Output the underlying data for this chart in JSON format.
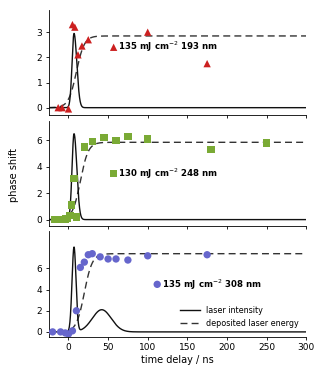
{
  "panel1": {
    "label": "135 mJ cm$^{-2}$ 193 nm",
    "scatter_color": "#cc2020",
    "marker": "^",
    "scatter_x": [
      -13,
      -8,
      0,
      5,
      8,
      12,
      17,
      25,
      100,
      175
    ],
    "scatter_y": [
      0.0,
      0.0,
      -0.05,
      3.3,
      3.2,
      2.1,
      2.45,
      2.7,
      3.0,
      1.75
    ],
    "ylim": [
      -0.3,
      3.9
    ],
    "yticks": [
      0,
      1,
      2,
      3
    ],
    "laser_peak_x": 7,
    "laser_peak_y": 2.95,
    "deposited_plateau": 2.85,
    "deposited_rise": 10
  },
  "panel2": {
    "label": "130 mJ cm$^{-2}$ 248 nm",
    "scatter_color": "#7aaa35",
    "marker": "s",
    "scatter_x": [
      -18,
      -10,
      -4,
      -1,
      2,
      4,
      7,
      10,
      20,
      30,
      45,
      60,
      75,
      100,
      180,
      250
    ],
    "scatter_y": [
      0.0,
      0.0,
      0.05,
      0.1,
      0.3,
      1.1,
      3.1,
      0.2,
      5.5,
      5.9,
      6.2,
      6.0,
      6.3,
      6.1,
      5.3,
      5.8
    ],
    "ylim": [
      -0.5,
      7.5
    ],
    "yticks": [
      0,
      2,
      4,
      6
    ],
    "laser_peak_x": 7,
    "laser_peak_y": 6.5,
    "deposited_plateau": 5.85,
    "deposited_rise": 15
  },
  "panel3": {
    "label": "135 mJ cm$^{-2}$ 308 nm",
    "scatter_color": "#6666cc",
    "marker": "o",
    "scatter_x": [
      -20,
      -10,
      -4,
      0,
      5,
      10,
      15,
      20,
      25,
      30,
      40,
      50,
      60,
      75,
      100,
      175
    ],
    "scatter_y": [
      0.0,
      0.0,
      -0.1,
      -0.2,
      0.1,
      2.0,
      6.1,
      6.6,
      7.3,
      7.4,
      7.1,
      6.9,
      6.9,
      6.8,
      7.2,
      7.3
    ],
    "ylim": [
      -0.5,
      9.5
    ],
    "yticks": [
      0,
      2,
      4,
      6
    ],
    "laser_peak_x": 7,
    "laser_peak_y": 8.0,
    "deposited_plateau": 7.4,
    "deposited_rise": 20
  },
  "xlim": [
    -25,
    300
  ],
  "xticks": [
    0,
    50,
    100,
    150,
    200,
    250,
    300
  ],
  "xlabel": "time delay / ns",
  "ylabel": "phase shift",
  "background_color": "#ffffff",
  "line_color": "#111111",
  "dashed_color": "#333333"
}
